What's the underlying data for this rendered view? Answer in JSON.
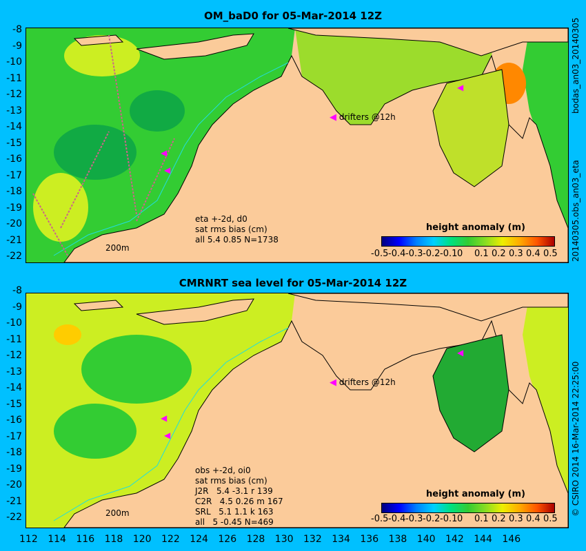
{
  "top_panel": {
    "title": "OM_baD0 for 05-Mar-2014 12Z",
    "right_label_top": "bodas_an03_20140305",
    "right_label_bottom": "20140305.obs_an03_eta",
    "drifters_label": "drifters @12h",
    "depth_label": "200m",
    "stats_lines": [
      "eta +-2d, d0",
      "sat rms bias (cm)",
      "all 5.4 0.85 N=1738"
    ],
    "colorbar_title": "height anomaly (m)"
  },
  "bottom_panel": {
    "title": "CMRNRT sea level  for 05-Mar-2014 12Z",
    "right_label": "© CSIRO 2014   16-Mar-2014 22:25:00",
    "drifters_label": "drifters @12h",
    "depth_label": "200m",
    "stats_lines": [
      "obs +-2d, oi0",
      "sat rms bias (cm)",
      "J2R   5.4 -3.1 r 139",
      "C2R   4.5 0.26 m 167",
      "SRL   5.1 1.1 k 163",
      "all   5 -0.45 N=469"
    ],
    "colorbar_title": "height anomaly (m)"
  },
  "y_ticks": [
    "-8",
    "-9",
    "-10",
    "-11",
    "-12",
    "-13",
    "-14",
    "-15",
    "-16",
    "-17",
    "-18",
    "-19",
    "-20",
    "-21",
    "-22"
  ],
  "x_ticks": [
    "112",
    "114",
    "116",
    "118",
    "120",
    "122",
    "124",
    "126",
    "128",
    "130",
    "132",
    "134",
    "136",
    "138",
    "140",
    "142",
    "144",
    "146"
  ],
  "colorbar_ticks": [
    "-0.5",
    "-0.4",
    "-0.3",
    "-0.2",
    "-0.1",
    "0",
    "0.1",
    "0.2",
    "0.3",
    "0.4",
    "0.5"
  ],
  "colors": {
    "background": "#00c0ff",
    "land": "#fbcb9a",
    "ocean_mid": "#33cc33",
    "ocean_low": "#11aa44",
    "ocean_high": "#ccee22",
    "drifter": "#ff00ff",
    "isobath": "#22dddd"
  }
}
